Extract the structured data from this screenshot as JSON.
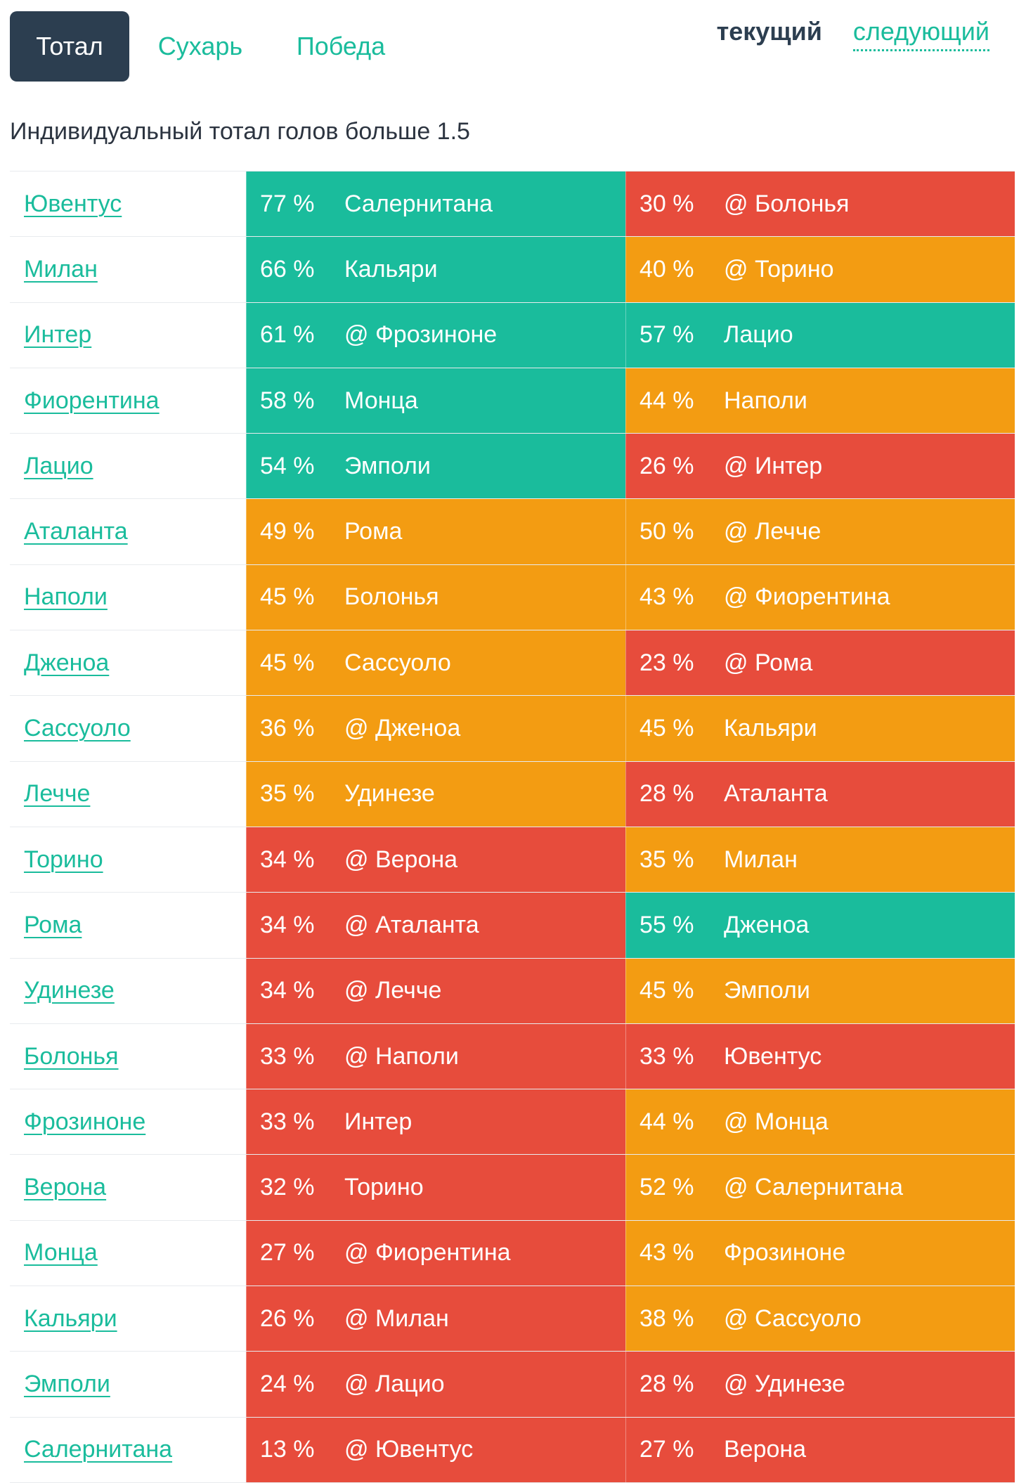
{
  "tabs": [
    {
      "label": "Тотал",
      "active": true
    },
    {
      "label": "Сухарь",
      "active": false
    },
    {
      "label": "Победа",
      "active": false
    }
  ],
  "period": {
    "current": "текущий",
    "next": "следующий"
  },
  "subtitle": "Индивидуальный тотал голов больше 1.5",
  "colors": {
    "green": "#1abc9c",
    "orange": "#f39c12",
    "red": "#e74c3c",
    "dark": "#2c3e50"
  },
  "rows": [
    {
      "team": "Ювентус",
      "p1": "77 %",
      "o1": "Салернитана",
      "c1": "green",
      "p2": "30 %",
      "o2": "@ Болонья",
      "c2": "red"
    },
    {
      "team": "Милан",
      "p1": "66 %",
      "o1": "Кальяри",
      "c1": "green",
      "p2": "40 %",
      "o2": "@ Торино",
      "c2": "orange"
    },
    {
      "team": "Интер",
      "p1": "61 %",
      "o1": "@ Фрозиноне",
      "c1": "green",
      "p2": "57 %",
      "o2": "Лацио",
      "c2": "green"
    },
    {
      "team": "Фиорентина",
      "p1": "58 %",
      "o1": "Монца",
      "c1": "green",
      "p2": "44 %",
      "o2": "Наполи",
      "c2": "orange"
    },
    {
      "team": "Лацио",
      "p1": "54 %",
      "o1": "Эмполи",
      "c1": "green",
      "p2": "26 %",
      "o2": "@ Интер",
      "c2": "red"
    },
    {
      "team": "Аталанта",
      "p1": "49 %",
      "o1": "Рома",
      "c1": "orange",
      "p2": "50 %",
      "o2": "@ Лечче",
      "c2": "orange"
    },
    {
      "team": "Наполи",
      "p1": "45 %",
      "o1": "Болонья",
      "c1": "orange",
      "p2": "43 %",
      "o2": "@ Фиорентина",
      "c2": "orange"
    },
    {
      "team": "Дженоа",
      "p1": "45 %",
      "o1": "Сассуоло",
      "c1": "orange",
      "p2": "23 %",
      "o2": "@ Рома",
      "c2": "red"
    },
    {
      "team": "Сассуоло",
      "p1": "36 %",
      "o1": "@ Дженоа",
      "c1": "orange",
      "p2": "45 %",
      "o2": "Кальяри",
      "c2": "orange"
    },
    {
      "team": "Лечче",
      "p1": "35 %",
      "o1": "Удинезе",
      "c1": "orange",
      "p2": "28 %",
      "o2": "Аталанта",
      "c2": "red"
    },
    {
      "team": "Торино",
      "p1": "34 %",
      "o1": "@ Верона",
      "c1": "red",
      "p2": "35 %",
      "o2": "Милан",
      "c2": "orange"
    },
    {
      "team": "Рома",
      "p1": "34 %",
      "o1": "@ Аталанта",
      "c1": "red",
      "p2": "55 %",
      "o2": "Дженоа",
      "c2": "green"
    },
    {
      "team": "Удинезе",
      "p1": "34 %",
      "o1": "@ Лечче",
      "c1": "red",
      "p2": "45 %",
      "o2": "Эмполи",
      "c2": "orange"
    },
    {
      "team": "Болонья",
      "p1": "33 %",
      "o1": "@ Наполи",
      "c1": "red",
      "p2": "33 %",
      "o2": "Ювентус",
      "c2": "red"
    },
    {
      "team": "Фрозиноне",
      "p1": "33 %",
      "o1": "Интер",
      "c1": "red",
      "p2": "44 %",
      "o2": "@ Монца",
      "c2": "orange"
    },
    {
      "team": "Верона",
      "p1": "32 %",
      "o1": "Торино",
      "c1": "red",
      "p2": "52 %",
      "o2": "@ Салернитана",
      "c2": "orange"
    },
    {
      "team": "Монца",
      "p1": "27 %",
      "o1": "@ Фиорентина",
      "c1": "red",
      "p2": "43 %",
      "o2": "Фрозиноне",
      "c2": "orange"
    },
    {
      "team": "Кальяри",
      "p1": "26 %",
      "o1": "@ Милан",
      "c1": "red",
      "p2": "38 %",
      "o2": "@ Сассуоло",
      "c2": "orange"
    },
    {
      "team": "Эмполи",
      "p1": "24 %",
      "o1": "@ Лацио",
      "c1": "red",
      "p2": "28 %",
      "o2": "@ Удинезе",
      "c2": "red"
    },
    {
      "team": "Салернитана",
      "p1": "13 %",
      "o1": "@ Ювентус",
      "c1": "red",
      "p2": "27 %",
      "o2": "Верона",
      "c2": "red"
    }
  ]
}
